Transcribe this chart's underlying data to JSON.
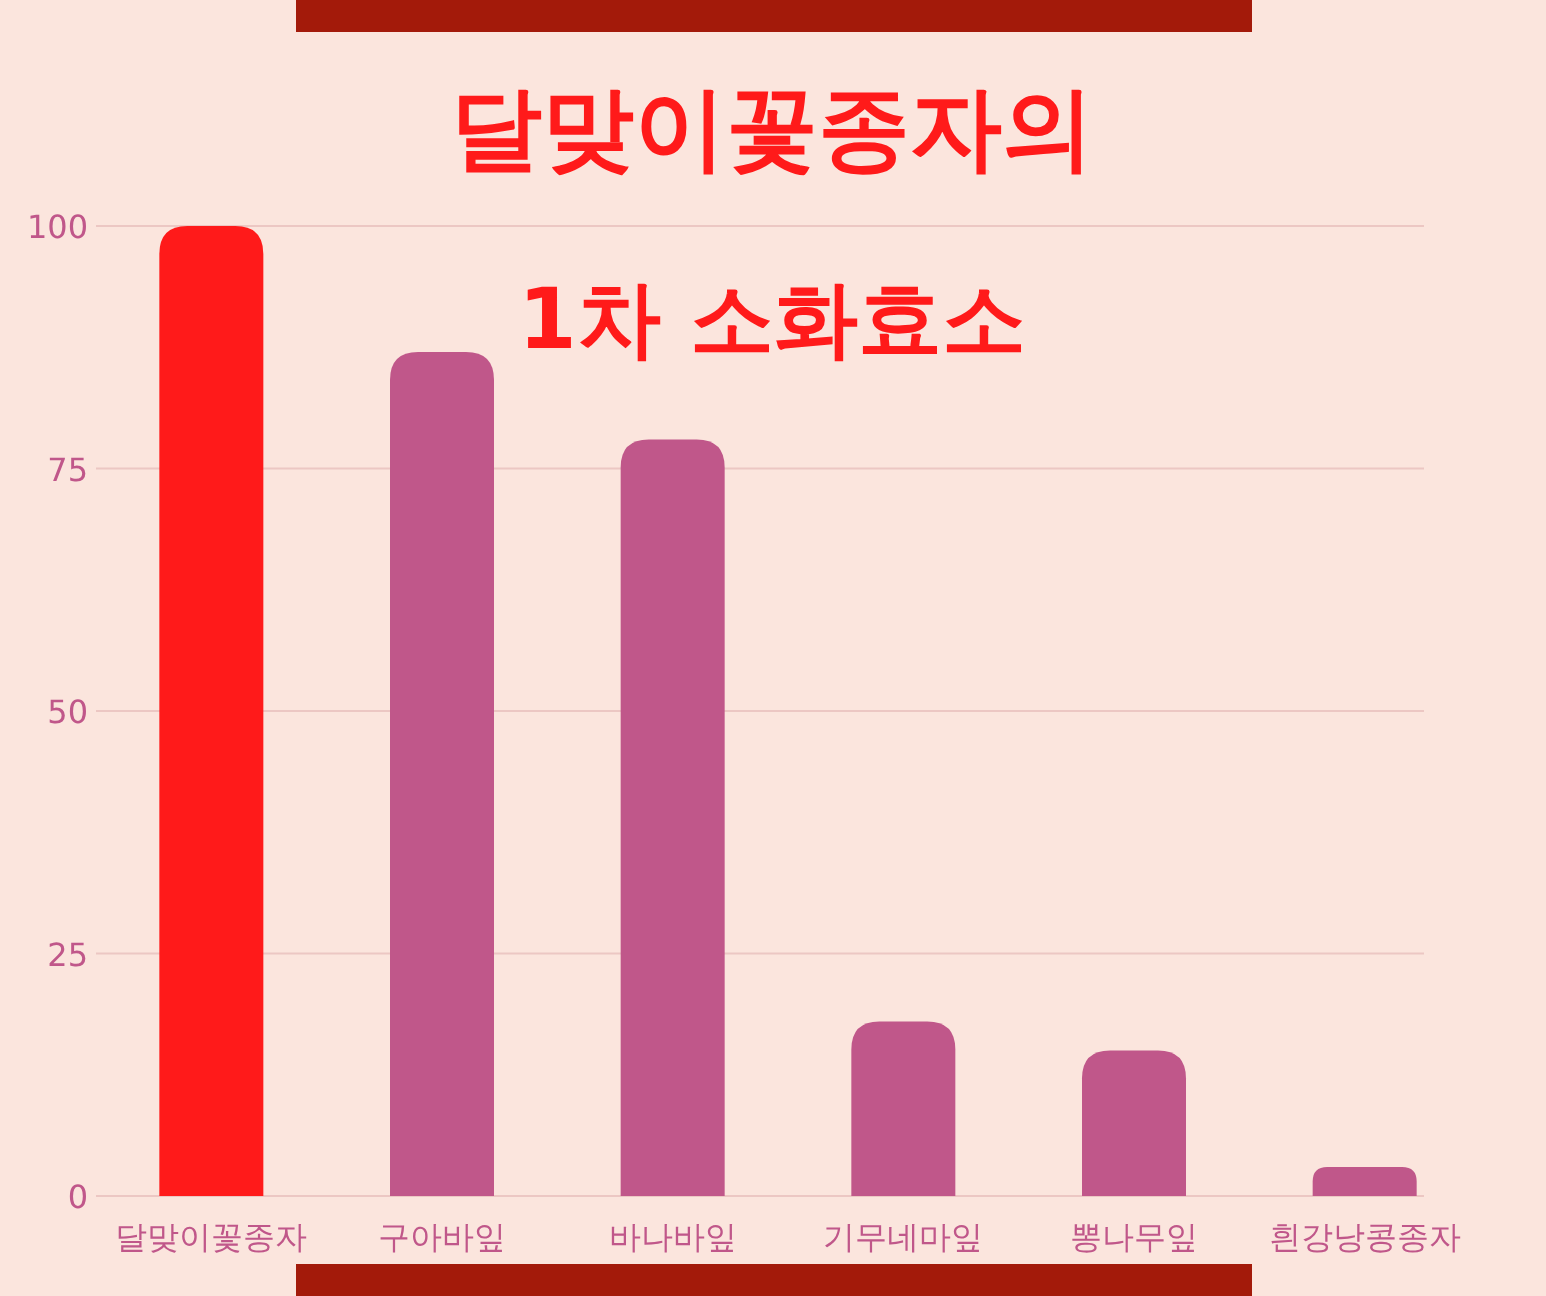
{
  "chart_data": {
    "type": "bar",
    "title": "달맞이꽃종자의",
    "subtitle": "1차 소화효소",
    "categories": [
      "달맞이꽃종자",
      "구아바잎",
      "바나바잎",
      "기무네마잎",
      "뽕나무잎",
      "흰강낭콩종자"
    ],
    "values": [
      100,
      87,
      78,
      18,
      15,
      3
    ],
    "colors": [
      "#ff1a1a",
      "#c0578a",
      "#c0578a",
      "#c0578a",
      "#c0578a",
      "#c0578a"
    ],
    "ylim": [
      0,
      100
    ],
    "yticks": [
      0,
      25,
      50,
      75,
      100
    ],
    "grid": "y"
  }
}
